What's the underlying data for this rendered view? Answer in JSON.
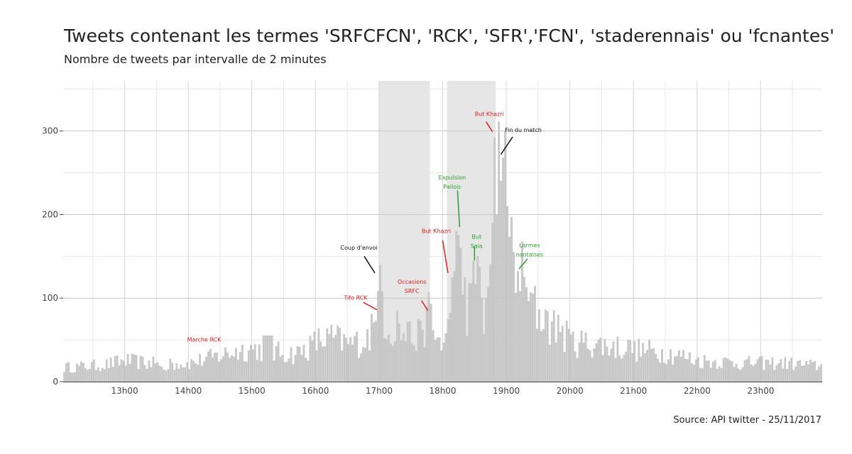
{
  "chart_data": {
    "type": "bar",
    "title": "Tweets contenant les termes 'SRFCFCN', 'RCK', 'SFR','FCN', 'staderennais' ou 'fcnantes'",
    "subtitle": "Nombre de tweets par intervalle de 2 minutes",
    "source": "Source: API twitter - 25/11/2017",
    "x_unit": "heure (minutes depuis minuit)",
    "xlim": [
      722,
      1438
    ],
    "bin_minutes": 2,
    "ylim": [
      0,
      360
    ],
    "grid": true,
    "legend": "none",
    "bar_color": "#c8c8c8",
    "shade_color": "#e6e6e6",
    "x_ticks": [
      {
        "value": 780,
        "label": "13h00"
      },
      {
        "value": 840,
        "label": "14h00"
      },
      {
        "value": 900,
        "label": "15h00"
      },
      {
        "value": 960,
        "label": "16h00"
      },
      {
        "value": 1020,
        "label": "17h00"
      },
      {
        "value": 1080,
        "label": "18h00"
      },
      {
        "value": 1140,
        "label": "19h00"
      },
      {
        "value": 1200,
        "label": "20h00"
      },
      {
        "value": 1260,
        "label": "21h00"
      },
      {
        "value": 1320,
        "label": "22h00"
      },
      {
        "value": 1380,
        "label": "23h00"
      }
    ],
    "y_ticks": [
      {
        "value": 0,
        "label": "0"
      },
      {
        "value": 100,
        "label": "100"
      },
      {
        "value": 200,
        "label": "200"
      },
      {
        "value": 300,
        "label": "300"
      }
    ],
    "shaded_periods": [
      {
        "start": 1020,
        "end": 1068
      },
      {
        "start": 1084,
        "end": 1130
      }
    ],
    "keypoints": [
      [
        722,
        17
      ],
      [
        740,
        18
      ],
      [
        760,
        20
      ],
      [
        780,
        25
      ],
      [
        800,
        22
      ],
      [
        820,
        20
      ],
      [
        840,
        22
      ],
      [
        860,
        28
      ],
      [
        880,
        35
      ],
      [
        900,
        40
      ],
      [
        920,
        35
      ],
      [
        940,
        33
      ],
      [
        955,
        42
      ],
      [
        960,
        48
      ],
      [
        975,
        52
      ],
      [
        990,
        45
      ],
      [
        1005,
        48
      ],
      [
        1012,
        60
      ],
      [
        1016,
        70
      ],
      [
        1020,
        105
      ],
      [
        1024,
        78
      ],
      [
        1030,
        62
      ],
      [
        1040,
        58
      ],
      [
        1050,
        52
      ],
      [
        1060,
        55
      ],
      [
        1066,
        88
      ],
      [
        1070,
        55
      ],
      [
        1076,
        50
      ],
      [
        1080,
        44
      ],
      [
        1084,
        60
      ],
      [
        1090,
        115
      ],
      [
        1094,
        178
      ],
      [
        1098,
        122
      ],
      [
        1102,
        88
      ],
      [
        1106,
        95
      ],
      [
        1110,
        125
      ],
      [
        1114,
        102
      ],
      [
        1118,
        78
      ],
      [
        1122,
        110
      ],
      [
        1126,
        175
      ],
      [
        1128,
        292
      ],
      [
        1132,
        250
      ],
      [
        1136,
        268
      ],
      [
        1140,
        190
      ],
      [
        1144,
        165
      ],
      [
        1148,
        125
      ],
      [
        1152,
        135
      ],
      [
        1160,
        95
      ],
      [
        1170,
        82
      ],
      [
        1180,
        68
      ],
      [
        1190,
        60
      ],
      [
        1200,
        48
      ],
      [
        1220,
        45
      ],
      [
        1240,
        42
      ],
      [
        1260,
        38
      ],
      [
        1280,
        36
      ],
      [
        1300,
        32
      ],
      [
        1320,
        25
      ],
      [
        1340,
        24
      ],
      [
        1360,
        22
      ],
      [
        1380,
        22
      ],
      [
        1400,
        22
      ],
      [
        1420,
        20
      ],
      [
        1438,
        18
      ]
    ],
    "overrides": [
      [
        1018,
        108
      ],
      [
        1020,
        139
      ],
      [
        1022,
        108
      ],
      [
        1036,
        85
      ],
      [
        1048,
        72
      ],
      [
        1060,
        62
      ],
      [
        1064,
        90
      ],
      [
        1086,
        82
      ],
      [
        1088,
        125
      ],
      [
        1090,
        132
      ],
      [
        1092,
        180
      ],
      [
        1094,
        175
      ],
      [
        1096,
        160
      ],
      [
        1112,
        150
      ],
      [
        1114,
        137
      ],
      [
        1120,
        100
      ],
      [
        1124,
        140
      ],
      [
        1126,
        190
      ],
      [
        1128,
        292
      ],
      [
        1130,
        200
      ],
      [
        1132,
        311
      ],
      [
        1134,
        240
      ],
      [
        1136,
        268
      ],
      [
        1140,
        210
      ],
      [
        1146,
        155
      ],
      [
        1150,
        132
      ],
      [
        1158,
        113
      ],
      [
        1164,
        105
      ],
      [
        1176,
        86
      ],
      [
        1188,
        80
      ],
      [
        1198,
        63
      ],
      [
        1254,
        50
      ]
    ],
    "annotations": [
      {
        "text": [
          "Marche RCK"
        ],
        "color": "#e31a1c",
        "x": 855,
        "y": 48
      },
      {
        "text": [
          "Coup d'envoi"
        ],
        "color": "#111111",
        "x": 1001,
        "y": 158,
        "line": [
          [
            1006,
            150
          ],
          [
            1016,
            130
          ]
        ]
      },
      {
        "text": [
          "Tifo RCK"
        ],
        "color": "#e31a1c",
        "x": 998,
        "y": 98,
        "line": [
          [
            1005,
            95
          ],
          [
            1018,
            86
          ]
        ]
      },
      {
        "text": [
          "Occasions",
          "SRFC"
        ],
        "color": "#e31a1c",
        "x": 1051,
        "y": 117,
        "line": [
          [
            1060,
            97
          ],
          [
            1066,
            85
          ]
        ]
      },
      {
        "text": [
          "But Khazri"
        ],
        "color": "#e31a1c",
        "x": 1074,
        "y": 178,
        "line": [
          [
            1080,
            169
          ],
          [
            1085,
            130
          ]
        ]
      },
      {
        "text": [
          "Expulsion",
          "Pallois"
        ],
        "color": "#2ca02c",
        "x": 1089,
        "y": 242,
        "line": [
          [
            1094,
            229
          ],
          [
            1096,
            185
          ]
        ]
      },
      {
        "text": [
          "But",
          "Sala"
        ],
        "color": "#2ca02c",
        "x": 1112,
        "y": 171,
        "line": [
          [
            1110,
            162
          ],
          [
            1110,
            145
          ]
        ]
      },
      {
        "text": [
          "But Khazri"
        ],
        "color": "#e31a1c",
        "x": 1124,
        "y": 318,
        "line": [
          [
            1121,
            311
          ],
          [
            1127,
            299
          ]
        ]
      },
      {
        "text": [
          "Fin du match"
        ],
        "color": "#111111",
        "x": 1156,
        "y": 299,
        "line": [
          [
            1146,
            293
          ],
          [
            1135,
            272
          ]
        ]
      },
      {
        "text": [
          "Larmes",
          "nantaises"
        ],
        "color": "#2ca02c",
        "x": 1162,
        "y": 161,
        "line": [
          [
            1160,
            147
          ],
          [
            1152,
            135
          ]
        ]
      }
    ]
  }
}
